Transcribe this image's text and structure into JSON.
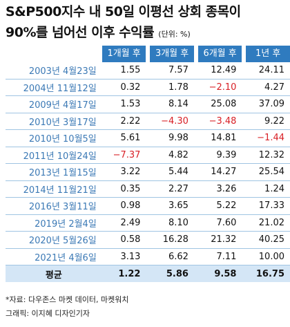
{
  "title": {
    "line1": "S&P500지수 내 50일 이평선 상회 종목이",
    "line2": "90%를 넘어선 이후 수익률",
    "unit": "(단위: %)"
  },
  "table": {
    "headers": [
      "1개월 후",
      "3개월 후",
      "6개월 후",
      "1년 후"
    ],
    "rows": [
      {
        "date": "2003년 4월23일",
        "values": [
          "1.55",
          "7.57",
          "12.49",
          "24.11"
        ]
      },
      {
        "date": "2004년 11월12일",
        "values": [
          "0.32",
          "1.78",
          "−2.10",
          "4.27"
        ]
      },
      {
        "date": "2009년 4월17일",
        "values": [
          "1.53",
          "8.14",
          "25.08",
          "37.09"
        ]
      },
      {
        "date": "2010년 3월17일",
        "values": [
          "2.22",
          "−4.30",
          "−3.48",
          "9.22"
        ]
      },
      {
        "date": "2010년 10월5일",
        "values": [
          "5.61",
          "9.98",
          "14.81",
          "−1.44"
        ]
      },
      {
        "date": "2011년 10월24일",
        "values": [
          "−7.37",
          "4.82",
          "9.39",
          "12.32"
        ]
      },
      {
        "date": "2013년 1월15일",
        "values": [
          "3.22",
          "5.44",
          "14.27",
          "25.54"
        ]
      },
      {
        "date": "2014년 11월21일",
        "values": [
          "0.35",
          "2.27",
          "3.26",
          "1.24"
        ]
      },
      {
        "date": "2016년 3월11일",
        "values": [
          "0.98",
          "3.65",
          "5.22",
          "17.33"
        ]
      },
      {
        "date": "2019년 2월4일",
        "values": [
          "2.49",
          "8.10",
          "7.60",
          "21.02"
        ]
      },
      {
        "date": "2020년 5월26일",
        "values": [
          "0.58",
          "16.28",
          "21.32",
          "40.25"
        ]
      },
      {
        "date": "2021년 4월6일",
        "values": [
          "3.13",
          "6.62",
          "7.11",
          "10.00"
        ]
      }
    ],
    "average": {
      "label": "평균",
      "values": [
        "1.22",
        "5.86",
        "9.58",
        "16.75"
      ]
    }
  },
  "footer": {
    "source": "*자료: 다우존스 마켓 데이터, 마켓워치",
    "credit": "그래픽: 이지혜 디자인기자"
  },
  "colors": {
    "header": "#2f7bbf",
    "label": "#3b79b5",
    "negative": "#d81e24",
    "average_bg": "#d4e6f6"
  }
}
